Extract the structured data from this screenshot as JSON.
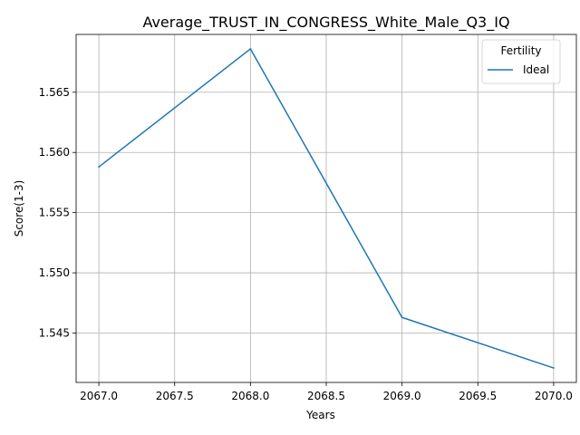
{
  "chart_data": {
    "type": "line",
    "title": "Average_TRUST_IN_CONGRESS_White_Male_Q3_IQ",
    "xlabel": "Years",
    "ylabel": "Score(1-3)",
    "x": [
      2067,
      2068,
      2069,
      2070
    ],
    "series": [
      {
        "name": "Ideal",
        "color": "#1f77b4",
        "values": [
          1.5588,
          1.5686,
          1.5463,
          1.5421
        ]
      }
    ],
    "xlim": [
      2066.85,
      2070.15
    ],
    "ylim": [
      1.5409,
      1.5698
    ],
    "xticks": [
      2067.0,
      2067.5,
      2068.0,
      2068.5,
      2069.0,
      2069.5,
      2070.0
    ],
    "xtick_labels": [
      "2067.0",
      "2067.5",
      "2068.0",
      "2068.5",
      "2069.0",
      "2069.5",
      "2070.0"
    ],
    "yticks": [
      1.545,
      1.55,
      1.555,
      1.56,
      1.565
    ],
    "ytick_labels": [
      "1.545",
      "1.550",
      "1.555",
      "1.560",
      "1.565"
    ],
    "grid": true,
    "legend": {
      "title": "Fertility",
      "placement": "top-right"
    }
  }
}
